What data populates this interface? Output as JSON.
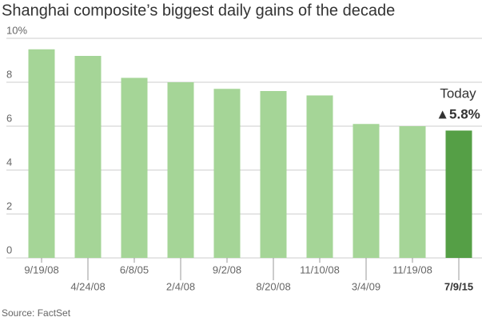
{
  "chart_data": {
    "type": "bar",
    "title": "Shanghai composite’s biggest daily gains of the decade",
    "categories": [
      "9/19/08",
      "4/24/08",
      "6/8/05",
      "2/4/08",
      "9/2/08",
      "8/20/08",
      "11/10/08",
      "3/4/09",
      "11/19/08",
      "7/9/15"
    ],
    "values": [
      9.5,
      9.2,
      8.2,
      8.0,
      7.7,
      7.6,
      7.4,
      6.1,
      6.0,
      5.8
    ],
    "colors": [
      "#a5d597",
      "#a5d597",
      "#a5d597",
      "#a5d597",
      "#a5d597",
      "#a5d597",
      "#a5d597",
      "#a5d597",
      "#a5d597",
      "#559f46"
    ],
    "ylim": [
      0,
      10
    ],
    "yticks": [
      0,
      2,
      4,
      6,
      8,
      {
        "value": 10,
        "label": "10%"
      }
    ],
    "grid": true,
    "annotations": [
      "Today",
      "▲5.8%"
    ],
    "source": "Source: FactSet"
  }
}
